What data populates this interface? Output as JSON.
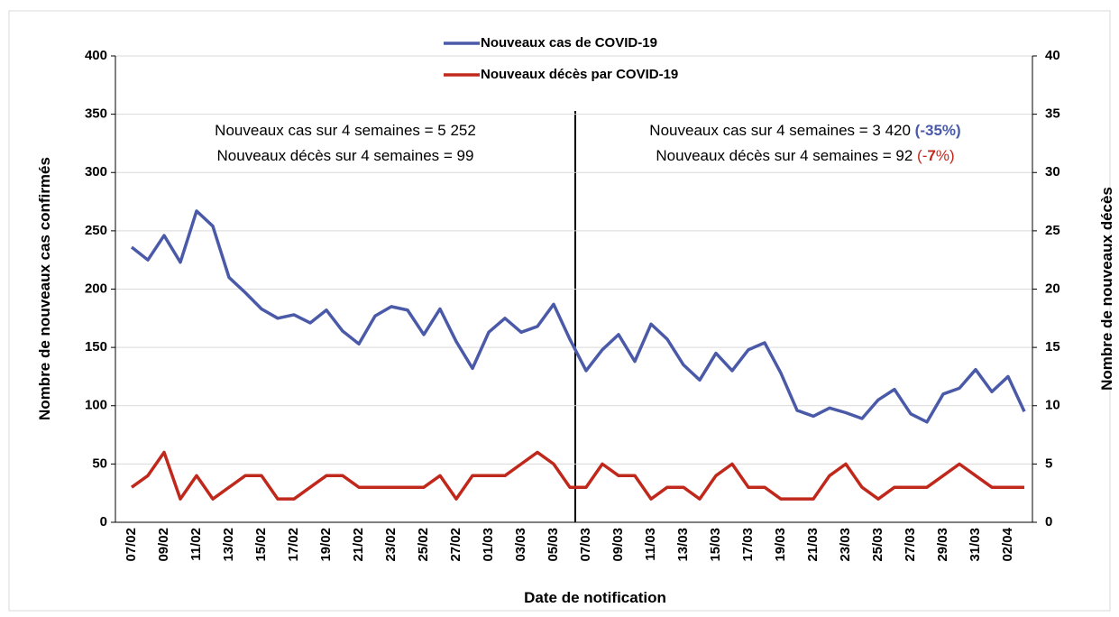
{
  "chart_data": {
    "type": "line",
    "categories": [
      "07/02",
      null,
      "09/02",
      null,
      "11/02",
      null,
      "13/02",
      null,
      "15/02",
      null,
      "17/02",
      null,
      "19/02",
      null,
      "21/02",
      null,
      "23/02",
      null,
      "25/02",
      null,
      "27/02",
      null,
      "01/03",
      null,
      "03/03",
      null,
      "05/03",
      null,
      "07/03",
      null,
      "09/03",
      null,
      "11/03",
      null,
      "13/03",
      null,
      "15/03",
      null,
      "17/03",
      null,
      "19/03",
      null,
      "21/03",
      null,
      "23/03",
      null,
      "25/03",
      null,
      "27/03",
      null,
      "29/03",
      null,
      "31/03",
      null,
      "02/04",
      null
    ],
    "series": [
      {
        "name": "Nouveaux cas de COVID-19",
        "color": "#4a5aa8",
        "values": [
          236,
          225,
          246,
          223,
          267,
          254,
          210,
          197,
          183,
          175,
          178,
          171,
          182,
          164,
          153,
          177,
          185,
          182,
          161,
          183,
          155,
          132,
          163,
          175,
          163,
          168,
          187,
          157,
          130,
          148,
          161,
          138,
          170,
          157,
          135,
          122,
          145,
          130,
          148,
          154,
          128,
          96,
          91,
          98,
          94,
          89,
          105,
          114,
          93,
          86,
          110,
          115,
          131,
          112,
          125,
          95
        ]
      },
      {
        "name": "Nouveaux décès par COVID-19",
        "color": "#c0281c",
        "axis": "y2",
        "values": [
          3,
          4,
          6,
          2,
          4,
          2,
          3,
          4,
          4,
          2,
          2,
          3,
          4,
          4,
          3,
          3,
          3,
          3,
          3,
          4,
          2,
          4,
          4,
          4,
          5,
          6,
          5,
          3,
          3,
          5,
          4,
          4,
          2,
          3,
          3,
          2,
          4,
          5,
          3,
          3,
          2,
          2,
          2,
          4,
          5,
          3,
          2,
          3,
          3,
          3,
          4,
          5,
          4,
          3,
          3,
          3
        ]
      }
    ],
    "ylim": [
      0,
      400
    ],
    "yticks": [
      0,
      50,
      100,
      150,
      200,
      250,
      300,
      350,
      400
    ],
    "y2lim": [
      0,
      40
    ],
    "y2ticks": [
      0,
      5,
      10,
      15,
      20,
      25,
      30,
      35,
      40
    ],
    "grid": true,
    "xlabel": "Date de notification",
    "ylabel": "Nombre de nouveaux cas confirmés",
    "y2label": "Nombre de nouveaux décès",
    "annotations": [
      {
        "parts": [
          {
            "text": "Nouveaux cas sur 4 semaines = 5 252"
          }
        ]
      },
      {
        "parts": [
          {
            "text": "Nouveaux décès sur 4 semaines = 99"
          }
        ]
      },
      {
        "parts": [
          {
            "text": "Nouveaux cas sur 4 semaines = 3 420 "
          },
          {
            "text": "(-35%)",
            "color": "#4a5aa8",
            "bold": true
          }
        ]
      },
      {
        "parts": [
          {
            "text": "Nouveaux décès sur 4 semaines = 92 "
          },
          {
            "text": "(-",
            "color": "#c0281c"
          },
          {
            "text": "7",
            "color": "#c0281c",
            "bold": true
          },
          {
            "text": "%)",
            "color": "#c0281c"
          }
        ]
      }
    ]
  }
}
